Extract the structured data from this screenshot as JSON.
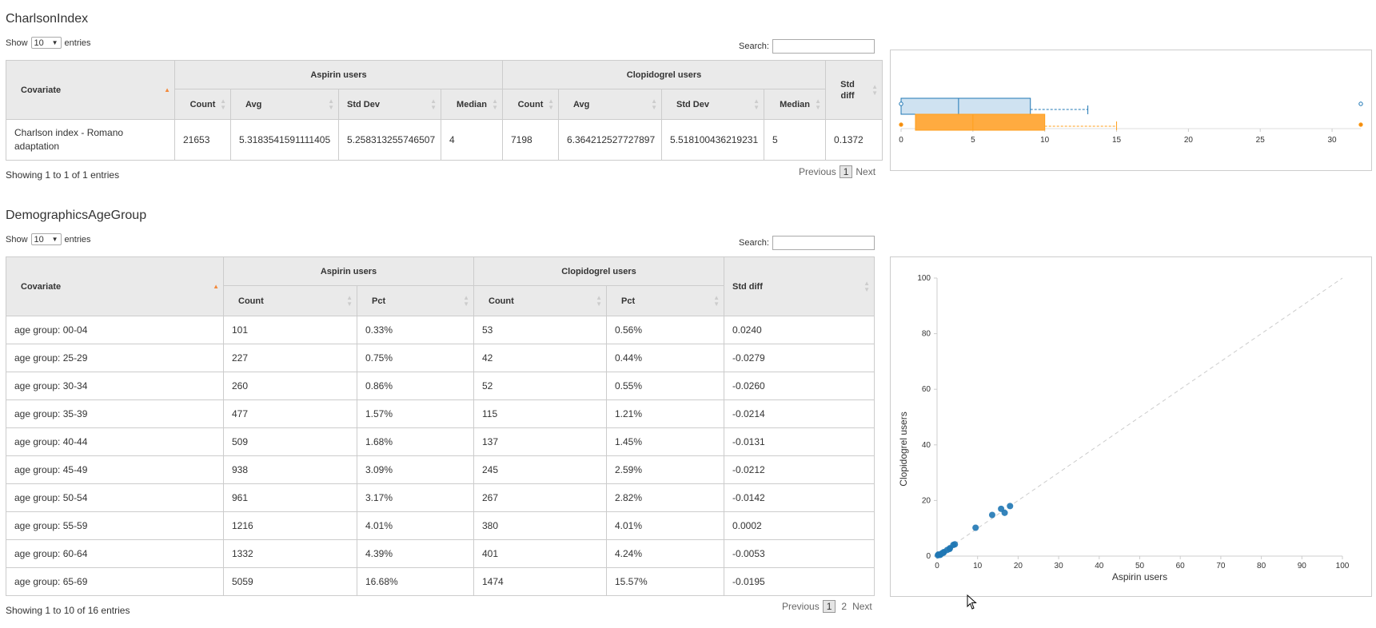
{
  "charlson": {
    "title": "CharlsonIndex",
    "show_label": "Show",
    "entries_value": "10",
    "entries_label": "entries",
    "search_label": "Search:",
    "group_headers": {
      "covariate": "Covariate",
      "aspirin": "Aspirin users",
      "clopidogrel": "Clopidogrel users",
      "std_diff": "Std diff"
    },
    "sub_headers": {
      "count": "Count",
      "avg": "Avg",
      "std_dev": "Std Dev",
      "median": "Median"
    },
    "row": {
      "covariate": "Charlson index - Romano adaptation",
      "a_count": "21653",
      "a_avg": "5.3183541591111405",
      "a_sd": "5.258313255746507",
      "a_median": "4",
      "c_count": "7198",
      "c_avg": "6.364212527727897",
      "c_sd": "5.518100436219231",
      "c_median": "5",
      "std_diff": "0.1372"
    },
    "info": "Showing 1 to 1 of 1 entries",
    "pager": {
      "prev": "Previous",
      "page1": "1",
      "next": "Next"
    }
  },
  "demographics": {
    "title": "DemographicsAgeGroup",
    "show_label": "Show",
    "entries_value": "10",
    "entries_label": "entries",
    "search_label": "Search:",
    "group_headers": {
      "covariate": "Covariate",
      "aspirin": "Aspirin users",
      "clopidogrel": "Clopidogrel users",
      "std_diff": "Std diff"
    },
    "sub_headers": {
      "count": "Count",
      "pct": "Pct"
    },
    "rows": [
      [
        "age group: 00-04",
        "101",
        "0.33%",
        "53",
        "0.56%",
        "0.0240"
      ],
      [
        "age group: 25-29",
        "227",
        "0.75%",
        "42",
        "0.44%",
        "-0.0279"
      ],
      [
        "age group: 30-34",
        "260",
        "0.86%",
        "52",
        "0.55%",
        "-0.0260"
      ],
      [
        "age group: 35-39",
        "477",
        "1.57%",
        "115",
        "1.21%",
        "-0.0214"
      ],
      [
        "age group: 40-44",
        "509",
        "1.68%",
        "137",
        "1.45%",
        "-0.0131"
      ],
      [
        "age group: 45-49",
        "938",
        "3.09%",
        "245",
        "2.59%",
        "-0.0212"
      ],
      [
        "age group: 50-54",
        "961",
        "3.17%",
        "267",
        "2.82%",
        "-0.0142"
      ],
      [
        "age group: 55-59",
        "1216",
        "4.01%",
        "380",
        "4.01%",
        "0.0002"
      ],
      [
        "age group: 60-64",
        "1332",
        "4.39%",
        "401",
        "4.24%",
        "-0.0053"
      ],
      [
        "age group: 65-69",
        "5059",
        "16.68%",
        "1474",
        "15.57%",
        "-0.0195"
      ]
    ],
    "info": "Showing 1 to 10 of 16 entries",
    "pager": {
      "prev": "Previous",
      "page1": "1",
      "page2": "2",
      "next": "Next"
    }
  },
  "chart_data": [
    {
      "type": "boxplot",
      "x_ticks": [
        "0",
        "5",
        "10",
        "15",
        "20",
        "25",
        "30"
      ],
      "xlim": [
        0,
        32
      ],
      "colors": {
        "aspirin": "#1f77b4",
        "clopidogrel": "#ff9f1c"
      },
      "boxes": [
        {
          "group": "aspirin",
          "min": 0,
          "q1": 0,
          "median": 4,
          "q3": 9,
          "whisker_high": 13,
          "outlier": 32
        },
        {
          "group": "clopidogrel",
          "min": 0,
          "q1": 1,
          "median": 5,
          "q3": 10,
          "whisker_high": 15,
          "outlier": 32
        }
      ]
    },
    {
      "type": "scatter",
      "xlabel": "Aspirin users",
      "ylabel": "Clopidogrel users",
      "xlim": [
        0,
        100
      ],
      "ylim": [
        0,
        100
      ],
      "x_ticks": [
        "0",
        "10",
        "20",
        "30",
        "40",
        "50",
        "60",
        "70",
        "80",
        "90",
        "100"
      ],
      "y_ticks": [
        "0",
        "20",
        "40",
        "60",
        "80",
        "100"
      ],
      "diagonal": true,
      "color": "#1f77b4",
      "points": [
        [
          0.33,
          0.56
        ],
        [
          0.75,
          0.44
        ],
        [
          0.86,
          0.55
        ],
        [
          1.57,
          1.21
        ],
        [
          1.68,
          1.45
        ],
        [
          3.09,
          2.59
        ],
        [
          3.17,
          2.82
        ],
        [
          4.01,
          4.01
        ],
        [
          4.39,
          4.24
        ],
        [
          16.68,
          15.57
        ],
        [
          0.2,
          0.3
        ],
        [
          1.2,
          1.0
        ],
        [
          2.5,
          2.2
        ],
        [
          9.5,
          10.2
        ],
        [
          13.6,
          14.8
        ],
        [
          15.8,
          17.0
        ],
        [
          18.0,
          18.0
        ]
      ]
    }
  ]
}
